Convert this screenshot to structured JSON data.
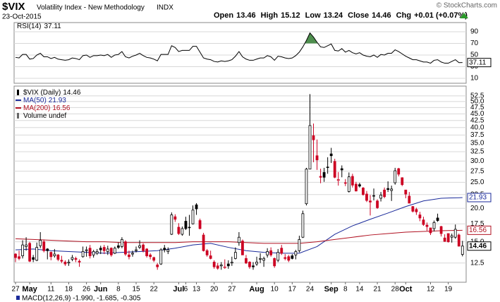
{
  "header": {
    "symbol": "$VIX",
    "name": "Volatility Index - New Methodology",
    "exchange": "INDX",
    "date": "23-Oct-2015",
    "watermark": "© StockCharts.com",
    "quote": [
      {
        "label": "Open",
        "value": 13.46
      },
      {
        "label": "High",
        "value": 15.12
      },
      {
        "label": "Low",
        "value": 13.24
      },
      {
        "label": "Close",
        "value": 14.46
      },
      {
        "label": "Chg",
        "value": "+0.01 (+0.07%)"
      }
    ]
  },
  "chart_data": [
    {
      "type": "line",
      "name": "RSI(14)",
      "value_label": "37.11",
      "color": "#000000",
      "fill_color": "#4f8f4f",
      "fill_above": 70,
      "ylim": [
        1.5,
        105.8
      ],
      "yticks": [
        90,
        70,
        50,
        30,
        10
      ],
      "values": [
        46,
        45,
        51,
        51,
        43,
        44,
        50,
        53,
        47,
        47,
        44,
        46,
        43,
        42,
        41,
        42,
        45,
        44,
        42,
        49,
        50,
        46,
        49,
        49,
        50,
        49,
        51,
        46,
        50,
        51,
        56,
        47,
        45,
        48,
        50,
        53,
        49,
        46,
        45,
        43,
        40,
        51,
        51,
        51,
        66,
        63,
        56,
        58,
        58,
        58,
        65,
        65,
        55,
        45,
        43,
        42,
        39,
        38,
        40,
        39,
        40,
        42,
        48,
        56,
        47,
        43,
        41,
        41,
        43,
        45,
        45,
        49,
        47,
        41,
        48,
        47,
        45,
        44,
        45,
        49,
        55,
        64,
        75,
        88,
        81,
        72,
        64,
        63,
        66,
        69,
        58,
        57,
        61,
        55,
        58,
        54,
        52,
        54,
        50,
        48,
        47,
        50,
        46,
        51,
        50,
        53,
        53,
        59,
        56,
        52,
        48,
        45,
        42,
        42,
        40,
        38,
        38,
        36,
        41,
        42,
        38,
        36,
        36,
        39,
        42,
        37,
        37.11
      ]
    },
    {
      "type": "candlestick",
      "name": "$VIX (Daily)",
      "value_label": "14.46",
      "extra_legend": "Volume undef",
      "log": true,
      "up_color": "#000000",
      "down_color": "#cc0022",
      "ylim": [
        10.6,
        57.1
      ],
      "yticks": [
        52.5,
        {
          "value": 50,
          "label": "50.0"
        },
        47.5,
        {
          "value": 45,
          "label": "45.0"
        },
        42.5,
        {
          "value": 40,
          "label": "40.0"
        },
        37.5,
        {
          "value": 35,
          "label": "35.0"
        },
        32.5,
        {
          "value": 30,
          "label": "30.0"
        },
        27.5,
        {
          "value": 25,
          "label": "25.0"
        },
        22.5,
        {
          "value": 20,
          "label": "20.0"
        },
        17.5,
        {
          "value": 15,
          "label": "15.0"
        },
        12.5
      ],
      "categories": [
        "27",
        null,
        null,
        null,
        "May",
        null,
        null,
        null,
        null,
        null,
        "11",
        null,
        null,
        null,
        null,
        "18",
        null,
        null,
        null,
        null,
        "26",
        null,
        null,
        null,
        "Jun",
        null,
        null,
        null,
        null,
        "8",
        null,
        null,
        null,
        null,
        "15",
        null,
        null,
        null,
        null,
        "22",
        null,
        null,
        null,
        null,
        null,
        null,
        "Jul",
        null,
        "6",
        null,
        null,
        "13",
        null,
        null,
        null,
        null,
        "20",
        null,
        null,
        null,
        null,
        "27",
        null,
        null,
        null,
        null,
        null,
        null,
        "Aug",
        null,
        null,
        null,
        null,
        "10",
        null,
        null,
        null,
        null,
        "17",
        null,
        null,
        null,
        null,
        "24",
        null,
        null,
        null,
        null,
        null,
        "Sep",
        null,
        null,
        null,
        "8",
        null,
        null,
        null,
        "14",
        null,
        null,
        null,
        null,
        "21",
        null,
        null,
        null,
        null,
        "28",
        null,
        null,
        "Oct",
        null,
        null,
        null,
        null,
        null,
        null,
        "12",
        null,
        null,
        null,
        null,
        "19",
        null,
        null,
        null,
        null
      ],
      "ohlc": [
        [
          13.5,
          13.6,
          12.6,
          13.1
        ],
        [
          13.2,
          13.9,
          12.8,
          13.0
        ],
        [
          13.3,
          15.2,
          13.0,
          14.6
        ],
        [
          14.4,
          15.6,
          13.9,
          14.6
        ],
        [
          14.8,
          15.0,
          12.6,
          12.7
        ],
        [
          13.1,
          13.4,
          12.6,
          12.9
        ],
        [
          12.8,
          14.9,
          12.7,
          14.3
        ],
        [
          14.5,
          16.3,
          14.2,
          15.2
        ],
        [
          15.0,
          15.3,
          13.7,
          13.9
        ],
        [
          14.1,
          14.2,
          12.9,
          13.9
        ],
        [
          13.7,
          13.8,
          12.8,
          13.2
        ],
        [
          13.3,
          14.1,
          13.1,
          13.5
        ],
        [
          13.4,
          13.5,
          12.7,
          12.9
        ],
        [
          12.8,
          13.3,
          12.5,
          12.7
        ],
        [
          12.6,
          12.8,
          12.2,
          12.4
        ],
        [
          12.5,
          12.9,
          12.2,
          12.6
        ],
        [
          12.9,
          13.4,
          12.7,
          13.1
        ],
        [
          13.0,
          13.2,
          12.6,
          12.9
        ],
        [
          12.7,
          12.9,
          12.1,
          12.6
        ],
        [
          13.2,
          14.4,
          13.1,
          13.8
        ],
        [
          13.9,
          14.4,
          13.2,
          14.0
        ],
        [
          14.2,
          14.6,
          13.0,
          13.3
        ],
        [
          13.4,
          14.0,
          13.1,
          13.8
        ],
        [
          13.6,
          14.1,
          13.4,
          13.8
        ],
        [
          14.2,
          14.5,
          13.5,
          14.0
        ],
        [
          14.3,
          14.6,
          13.5,
          13.9
        ],
        [
          13.8,
          14.5,
          13.4,
          14.1
        ],
        [
          14.2,
          14.3,
          13.2,
          13.4
        ],
        [
          13.6,
          14.4,
          13.5,
          14.2
        ],
        [
          14.5,
          14.9,
          14.1,
          14.3
        ],
        [
          14.4,
          15.6,
          14.2,
          15.3
        ],
        [
          15.0,
          15.2,
          13.3,
          13.5
        ],
        [
          13.4,
          13.9,
          12.9,
          13.2
        ],
        [
          13.5,
          13.9,
          13.2,
          13.6
        ],
        [
          13.9,
          14.4,
          13.7,
          14.0
        ],
        [
          14.3,
          15.2,
          14.1,
          14.5
        ],
        [
          14.6,
          14.8,
          13.7,
          13.9
        ],
        [
          14.1,
          14.2,
          13.1,
          13.3
        ],
        [
          13.4,
          13.6,
          12.9,
          13.2
        ],
        [
          13.1,
          13.2,
          12.6,
          12.8
        ],
        [
          12.3,
          12.5,
          11.8,
          12.1
        ],
        [
          12.4,
          14.2,
          12.3,
          14.0
        ],
        [
          14.2,
          14.6,
          13.7,
          14.0
        ],
        [
          13.8,
          14.3,
          13.5,
          14.0
        ],
        [
          16.0,
          19.3,
          15.9,
          18.9
        ],
        [
          18.6,
          19.0,
          17.8,
          18.2
        ],
        [
          17.0,
          17.6,
          15.9,
          16.1
        ],
        [
          16.0,
          17.1,
          15.8,
          16.8
        ],
        [
          17.9,
          18.6,
          16.6,
          16.8
        ],
        [
          17.0,
          18.9,
          15.8,
          17.0
        ],
        [
          17.5,
          20.5,
          17.4,
          19.7
        ],
        [
          20.6,
          20.9,
          18.9,
          19.9
        ],
        [
          18.0,
          18.3,
          16.7,
          16.8
        ],
        [
          15.9,
          16.2,
          13.8,
          13.9
        ],
        [
          13.9,
          14.1,
          13.2,
          13.4
        ],
        [
          13.3,
          13.9,
          12.9,
          13.0
        ],
        [
          12.6,
          12.8,
          11.9,
          12.1
        ],
        [
          12.2,
          12.5,
          11.8,
          11.95
        ],
        [
          12.2,
          12.6,
          11.8,
          12.3
        ],
        [
          12.0,
          12.9,
          11.9,
          12.1
        ],
        [
          12.4,
          12.8,
          11.9,
          12.2
        ],
        [
          12.5,
          13.2,
          12.2,
          12.6
        ],
        [
          13.0,
          14.3,
          12.9,
          13.7
        ],
        [
          14.9,
          16.3,
          14.5,
          15.6
        ],
        [
          15.1,
          15.3,
          13.4,
          13.4
        ],
        [
          13.0,
          13.4,
          12.4,
          12.5
        ],
        [
          12.6,
          12.7,
          11.9,
          12.1
        ],
        [
          12.2,
          12.6,
          11.8,
          12.1
        ],
        [
          12.4,
          13.2,
          12.2,
          12.6
        ],
        [
          12.9,
          13.6,
          12.5,
          13.0
        ],
        [
          12.8,
          13.2,
          12.1,
          13.0
        ],
        [
          13.4,
          14.2,
          13.1,
          13.8
        ],
        [
          13.9,
          14.3,
          13.2,
          13.4
        ],
        [
          13.0,
          13.1,
          12.0,
          12.2
        ],
        [
          12.8,
          14.1,
          12.6,
          13.7
        ],
        [
          14.2,
          14.6,
          13.4,
          13.6
        ],
        [
          13.1,
          13.5,
          12.8,
          13.0
        ],
        [
          13.2,
          13.4,
          12.6,
          12.8
        ],
        [
          13.3,
          13.5,
          12.9,
          13.0
        ],
        [
          13.4,
          14.0,
          12.9,
          13.8
        ],
        [
          13.9,
          15.8,
          13.7,
          15.3
        ],
        [
          15.6,
          19.6,
          15.5,
          19.1
        ],
        [
          20.8,
          28.3,
          20.5,
          28.0
        ],
        [
          28.0,
          53.3,
          28.0,
          40.7
        ],
        [
          37.3,
          41.4,
          29.7,
          36.0
        ],
        [
          31.4,
          36.1,
          27.8,
          30.3
        ],
        [
          26.3,
          28.1,
          24.8,
          26.1
        ],
        [
          27.2,
          28.3,
          25.1,
          26.1
        ],
        [
          28.5,
          31.0,
          26.9,
          28.4
        ],
        [
          31.9,
          33.6,
          29.5,
          31.4
        ],
        [
          29.9,
          30.6,
          25.9,
          26.1
        ],
        [
          25.4,
          27.3,
          24.3,
          25.6
        ],
        [
          28.1,
          28.9,
          26.1,
          27.8
        ],
        [
          24.8,
          25.7,
          24.2,
          24.9
        ],
        [
          23.1,
          27.2,
          22.9,
          26.2
        ],
        [
          26.3,
          26.9,
          23.9,
          24.4
        ],
        [
          24.6,
          25.1,
          23.1,
          23.2
        ],
        [
          24.5,
          24.9,
          23.9,
          24.2
        ],
        [
          23.8,
          24.0,
          22.3,
          22.5
        ],
        [
          22.6,
          23.2,
          21.1,
          21.4
        ],
        [
          21.3,
          22.4,
          18.8,
          21.1
        ],
        [
          22.2,
          23.7,
          21.4,
          22.3
        ],
        [
          21.3,
          21.6,
          19.9,
          20.1
        ],
        [
          21.8,
          23.0,
          21.2,
          22.4
        ],
        [
          23.4,
          23.9,
          21.8,
          22.1
        ],
        [
          23.7,
          25.2,
          23.0,
          23.5
        ],
        [
          23.3,
          24.3,
          21.3,
          23.6
        ],
        [
          24.9,
          28.3,
          24.5,
          27.6
        ],
        [
          28.1,
          28.3,
          26.3,
          26.8
        ],
        [
          26.0,
          26.1,
          24.2,
          24.5
        ],
        [
          23.4,
          23.4,
          21.8,
          22.6
        ],
        [
          22.2,
          23.0,
          20.9,
          20.9
        ],
        [
          20.3,
          20.4,
          19.3,
          19.5
        ],
        [
          19.8,
          20.1,
          18.9,
          19.4
        ],
        [
          18.9,
          19.4,
          17.9,
          18.4
        ],
        [
          18.1,
          18.6,
          17.2,
          17.4
        ],
        [
          17.3,
          17.7,
          16.5,
          17.1
        ],
        [
          16.9,
          16.9,
          15.9,
          16.2
        ],
        [
          16.8,
          18.0,
          16.4,
          17.7
        ],
        [
          18.4,
          19.1,
          17.8,
          18.0
        ],
        [
          17.1,
          17.2,
          15.7,
          16.1
        ],
        [
          15.5,
          16.0,
          15.0,
          15.05
        ],
        [
          16.1,
          16.1,
          14.9,
          15.0
        ],
        [
          15.6,
          16.1,
          14.9,
          15.8
        ],
        [
          15.6,
          17.4,
          15.4,
          16.7
        ],
        [
          15.9,
          16.1,
          14.4,
          14.45
        ],
        [
          13.46,
          15.12,
          13.24,
          14.46
        ]
      ],
      "series": [
        {
          "name": "MA(50)",
          "value_label": "21.93",
          "color": "#1a2a9a",
          "x": [
            0,
            5,
            10,
            15,
            20,
            25,
            30,
            35,
            40,
            45,
            50,
            55,
            60,
            65,
            70,
            75,
            80,
            85,
            90,
            95,
            100,
            105,
            110,
            115,
            120,
            125,
            126
          ],
          "values": [
            14.0,
            14.1,
            13.9,
            13.8,
            13.7,
            13.6,
            13.7,
            13.8,
            13.9,
            14.2,
            14.6,
            14.8,
            14.3,
            13.9,
            13.7,
            13.6,
            13.6,
            14.4,
            16.0,
            17.2,
            18.2,
            19.2,
            20.3,
            21.3,
            21.8,
            21.9,
            21.93
          ]
        },
        {
          "name": "MA(200)",
          "value_label": "16.56",
          "color": "#b01020",
          "x": [
            0,
            5,
            10,
            15,
            20,
            25,
            30,
            35,
            40,
            45,
            50,
            55,
            60,
            65,
            70,
            75,
            80,
            85,
            90,
            95,
            100,
            105,
            110,
            115,
            120,
            125,
            126
          ],
          "values": [
            15.4,
            15.3,
            15.2,
            15.1,
            15.0,
            15.0,
            14.9,
            14.9,
            14.9,
            14.9,
            15.0,
            15.0,
            15.0,
            14.9,
            14.8,
            14.8,
            14.8,
            15.0,
            15.3,
            15.6,
            15.9,
            16.1,
            16.3,
            16.4,
            16.5,
            16.55,
            16.56
          ]
        }
      ]
    },
    {
      "type": "text",
      "label": "MACD(12,26,9) -1.990, -1.685, -0.305"
    }
  ]
}
